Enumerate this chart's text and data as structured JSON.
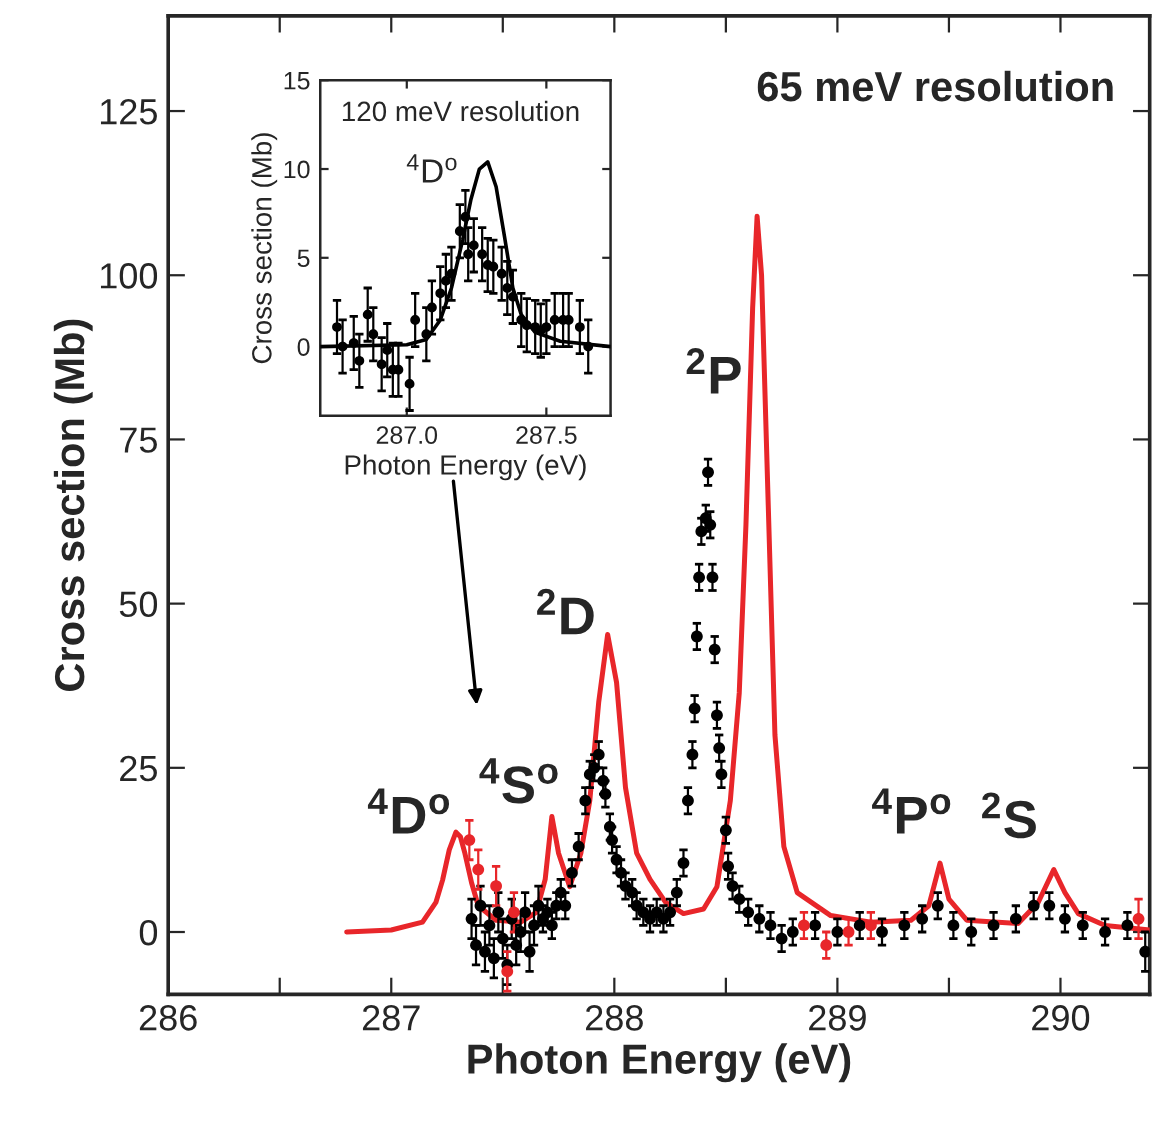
{
  "chart_data": [
    {
      "type": "line",
      "xlabel": "Photon Energy (eV)",
      "ylabel": "Cross section (Mb)",
      "xlim": [
        286,
        290.4
      ],
      "ylim": [
        -9.5,
        139.5
      ],
      "xticks": [
        286,
        {
          "value": 286.5,
          "label": null
        },
        287,
        {
          "value": 287.5,
          "label": null
        },
        288,
        {
          "value": 288.5,
          "label": null
        },
        289,
        {
          "value": 289.5,
          "label": null
        },
        290
      ],
      "yticks": [
        0,
        25,
        50,
        75,
        100,
        125
      ],
      "grid": false,
      "legend": false,
      "series": [
        {
          "type": "scatter",
          "color": "#000000",
          "marker": "circle",
          "x": [
            287.36,
            287.38,
            287.4,
            287.42,
            287.44,
            287.46,
            287.48,
            287.5,
            287.52,
            287.54,
            287.56,
            287.58,
            287.6,
            287.62,
            287.64,
            287.66,
            287.68,
            287.7,
            287.72,
            287.74,
            287.76,
            287.78,
            287.81,
            287.84,
            287.87,
            287.89,
            287.91,
            287.93,
            287.95,
            287.96,
            287.98,
            287.99,
            288.01,
            288.03,
            288.05,
            288.08,
            288.1,
            288.13,
            288.16,
            288.19,
            288.22,
            288.25,
            288.28,
            288.31,
            288.33,
            288.35,
            288.36,
            288.37,
            288.38,
            288.39,
            288.41,
            288.42,
            288.43,
            288.44,
            288.45,
            288.46,
            288.47,
            288.48,
            288.5,
            288.51,
            288.53,
            288.56,
            288.6,
            288.65,
            288.7,
            288.75,
            288.8,
            288.9,
            289.0,
            289.1,
            289.2,
            289.3,
            289.38,
            289.45,
            289.52,
            289.6,
            289.7,
            289.8,
            289.88,
            289.95,
            290.02,
            290.1,
            290.2,
            290.3,
            290.38
          ],
          "values": [
            2,
            -2,
            4,
            -3,
            1,
            -4,
            3,
            -1,
            -5,
            2,
            -2,
            0,
            3,
            -3,
            1,
            4,
            2,
            3,
            1,
            4,
            6,
            4,
            9,
            13,
            20,
            24,
            25,
            27,
            23,
            21,
            16,
            14,
            11,
            9,
            7,
            6,
            4,
            3,
            2,
            3,
            2,
            3,
            6,
            10.5,
            20,
            27,
            34,
            45,
            54,
            61,
            63,
            70,
            62,
            54,
            43,
            33,
            28,
            24,
            15.5,
            10,
            7,
            5,
            3,
            2,
            1,
            -1,
            0,
            1,
            0,
            1,
            0,
            1,
            2,
            4,
            1,
            0,
            1,
            2,
            4,
            4,
            2,
            1,
            0,
            1,
            -3
          ],
          "errors": [
            3,
            3,
            3,
            3,
            3,
            3,
            3,
            3,
            3,
            3,
            3,
            3,
            3,
            3,
            3,
            3,
            2,
            2,
            2,
            2,
            2,
            2,
            2,
            2,
            2,
            2,
            2,
            2,
            2,
            2,
            2,
            2,
            2,
            2,
            2,
            2,
            2,
            2,
            2,
            2,
            2,
            2,
            2,
            2,
            2,
            2,
            2,
            2,
            2,
            2,
            2,
            2,
            2,
            2,
            2,
            2,
            2,
            2,
            2,
            2,
            2,
            2,
            2,
            2,
            2,
            2,
            2,
            2,
            2,
            2,
            2,
            2,
            2,
            2,
            2,
            2,
            2,
            2,
            2,
            2,
            2,
            2,
            2,
            2,
            3
          ]
        },
        {
          "type": "scatter",
          "color": "#e8262a",
          "marker": "circle",
          "x": [
            287.35,
            287.39,
            287.47,
            287.52,
            287.55,
            288.85,
            288.95,
            289.05,
            289.15,
            290.35
          ],
          "values": [
            14,
            9.5,
            7,
            -6,
            3,
            1,
            -2,
            0,
            1,
            2
          ],
          "errors": [
            3,
            3,
            3,
            3,
            3,
            2,
            2,
            2,
            2,
            3
          ]
        },
        {
          "color": "#e8262a",
          "marker": "none",
          "line_style": "solid",
          "x": [
            286.8,
            287.0,
            287.14,
            287.2,
            287.23,
            287.26,
            287.29,
            287.31,
            287.33,
            287.36,
            287.39,
            287.47,
            287.58,
            287.65,
            287.69,
            287.72,
            287.75,
            287.8,
            287.85,
            287.89,
            287.93,
            287.97,
            288.01,
            288.05,
            288.1,
            288.16,
            288.23,
            288.31,
            288.4,
            288.46,
            288.52,
            288.56,
            288.59,
            288.62,
            288.64,
            288.66,
            288.69,
            288.72,
            288.76,
            288.82,
            288.97,
            289.15,
            289.33,
            289.41,
            289.46,
            289.5,
            289.58,
            289.81,
            289.9,
            289.97,
            290.02,
            290.08,
            290.2,
            290.4
          ],
          "values": [
            0,
            0.3,
            1.5,
            4.5,
            7.9,
            12.5,
            15.2,
            14.5,
            12,
            7.5,
            4,
            1.8,
            1.5,
            3,
            8,
            17.6,
            12,
            6.9,
            12,
            20,
            35,
            45.3,
            38,
            22,
            12,
            8,
            4.5,
            2.8,
            3.5,
            6.9,
            20,
            36.4,
            62,
            95,
            109,
            100,
            65,
            30,
            13,
            6,
            2.5,
            1.5,
            1.8,
            4,
            10.5,
            5,
            1.8,
            1.3,
            4.5,
            9.5,
            6,
            2.8,
            1,
            0.3
          ]
        }
      ],
      "annotations": [
        "$^{4}$D$^{o}$",
        "$^{4}$S$^{o}$",
        "$^{2}$D",
        "$^{2}$P",
        "$^{4}$P$^{o}$",
        "$^{2}$S",
        "65 meV resolution"
      ]
    },
    {
      "type": "line",
      "xlabel": "Photon Energy (eV)",
      "ylabel": "Cross section (Mb)",
      "xlim": [
        286.69,
        287.73
      ],
      "ylim": [
        -3.9,
        15
      ],
      "xticks": [
        {
          "value": 287.0,
          "label": "287.0"
        },
        {
          "value": 287.5,
          "label": "287.5"
        }
      ],
      "yticks": [
        0,
        5,
        10,
        15
      ],
      "grid": false,
      "legend": false,
      "series": [
        {
          "type": "scatter",
          "color": "#000000",
          "marker": "circle",
          "x": [
            286.75,
            286.77,
            286.81,
            286.83,
            286.86,
            286.88,
            286.91,
            286.93,
            286.95,
            286.97,
            287.01,
            287.03,
            287.07,
            287.09,
            287.12,
            287.14,
            287.16,
            287.19,
            287.21,
            287.22,
            287.24,
            287.27,
            287.29,
            287.31,
            287.34,
            287.36,
            287.38,
            287.41,
            287.43,
            287.46,
            287.48,
            287.5,
            287.53,
            287.56,
            287.58,
            287.62,
            287.65
          ],
          "values": [
            1.1,
            0,
            0.2,
            -0.8,
            1.8,
            0.7,
            -1,
            -0.2,
            -1.3,
            -1.3,
            -2.1,
            1.5,
            0.7,
            2.2,
            3,
            3.7,
            4.1,
            6.5,
            7.3,
            5.2,
            5.7,
            5.2,
            4.6,
            4.5,
            4.1,
            3.3,
            2.8,
            1.5,
            1.2,
            1.1,
            0.9,
            1.1,
            1.5,
            1.5,
            1.5,
            1.1,
            0
          ],
          "errors": [
            1.5,
            1.5,
            1.5,
            1.5,
            1.5,
            1.5,
            1.5,
            1.5,
            1.5,
            1.5,
            1.5,
            1.5,
            1.5,
            1.5,
            1.5,
            1.5,
            1.5,
            1.5,
            1.5,
            1.5,
            1.5,
            1.5,
            1.5,
            1.5,
            1.5,
            1.5,
            1.5,
            1.5,
            1.5,
            1.5,
            1.5,
            1.5,
            1.5,
            1.5,
            1.5,
            1.5,
            1.5
          ]
        },
        {
          "color": "#000000",
          "marker": "none",
          "line_style": "solid",
          "x": [
            286.69,
            287.0,
            287.07,
            287.12,
            287.16,
            287.2,
            287.23,
            287.26,
            287.29,
            287.32,
            287.35,
            287.38,
            287.41,
            287.46,
            287.55,
            287.73
          ],
          "values": [
            0,
            0.1,
            0.4,
            1.5,
            3.3,
            6,
            8.3,
            10,
            10.4,
            9,
            6.2,
            3.3,
            1.8,
            0.8,
            0.3,
            0
          ]
        }
      ],
      "annotations": [
        "120 meV resolution",
        "$^{4}$D$^{o}$"
      ]
    }
  ]
}
